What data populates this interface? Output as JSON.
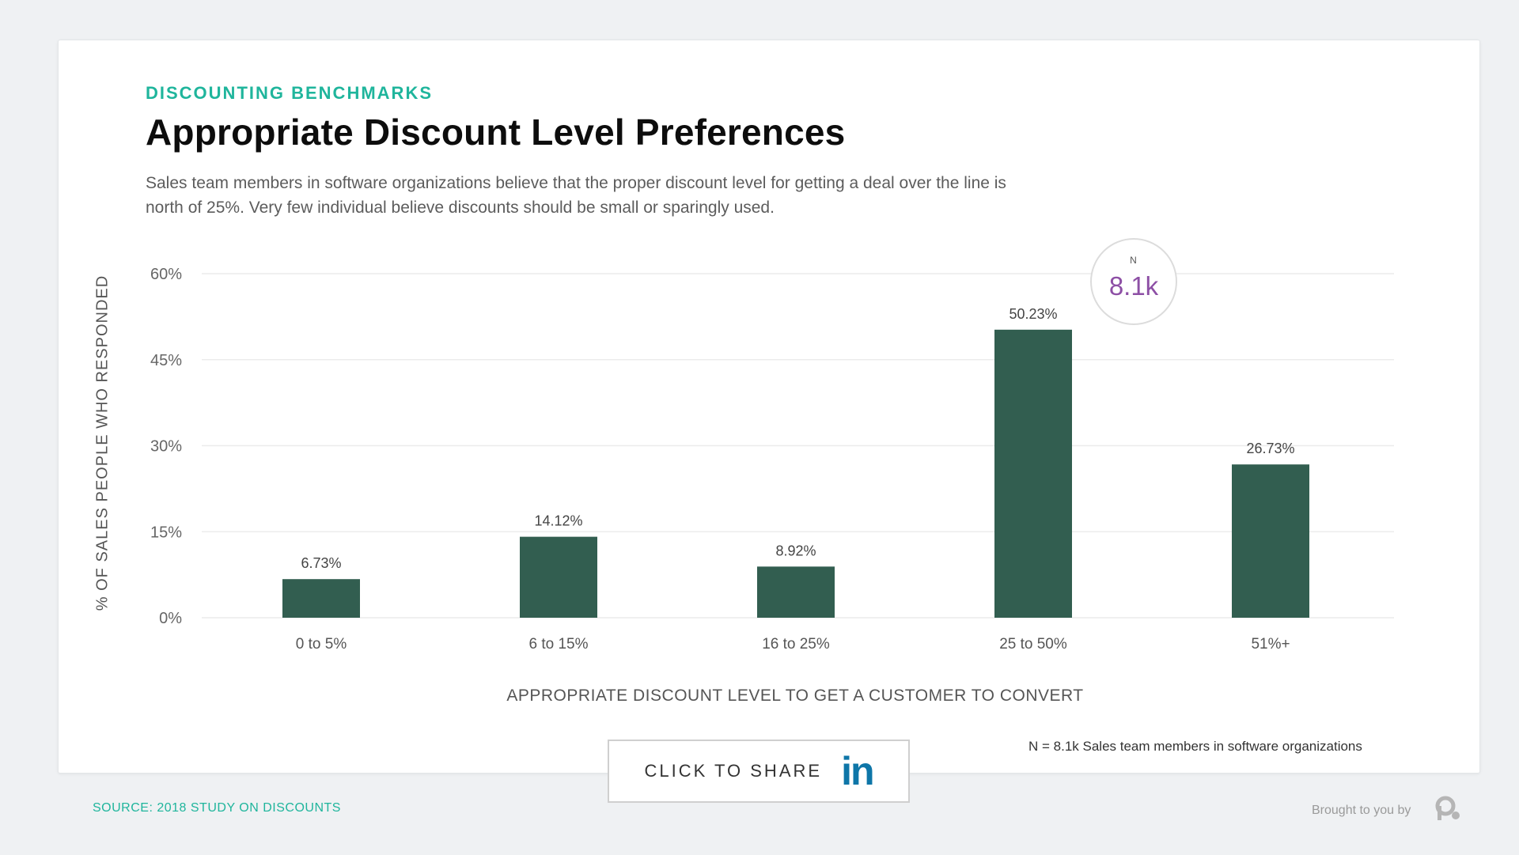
{
  "header": {
    "eyebrow": "DISCOUNTING BENCHMARKS",
    "title": "Appropriate Discount Level Preferences",
    "subtitle": "Sales team members in software organizations believe that the proper discount level for getting a deal over the line is north of 25%. Very few individual believe discounts should be small or sparingly used."
  },
  "chart_data": {
    "type": "bar",
    "categories": [
      "0 to 5%",
      "6 to 15%",
      "16 to 25%",
      "25 to 50%",
      "51%+"
    ],
    "values": [
      6.73,
      14.12,
      8.92,
      50.23,
      26.73
    ],
    "value_labels": [
      "6.73%",
      "14.12%",
      "8.92%",
      "50.23%",
      "26.73%"
    ],
    "ylabel": "% OF SALES PEOPLE WHO RESPONDED",
    "xlabel": "APPROPRIATE DISCOUNT LEVEL TO GET A CUSTOMER TO CONVERT",
    "ylim": [
      0,
      60
    ],
    "yticks": [
      0,
      15,
      30,
      45,
      60
    ],
    "ytick_labels": [
      "0%",
      "15%",
      "30%",
      "45%",
      "60%"
    ],
    "grid": true,
    "bar_color": "#325e50"
  },
  "badge": {
    "label": "N",
    "value": "8.1k"
  },
  "footnote": "N = 8.1k Sales team members in software organizations",
  "share": {
    "label": "CLICK TO SHARE",
    "network": "in"
  },
  "source": "SOURCE: 2018 STUDY ON DISCOUNTS",
  "brought_by": "Brought to you by",
  "colors": {
    "accent": "#1fb59c",
    "badge_value": "#8d4fa5",
    "linkedin": "#0e76a8"
  }
}
